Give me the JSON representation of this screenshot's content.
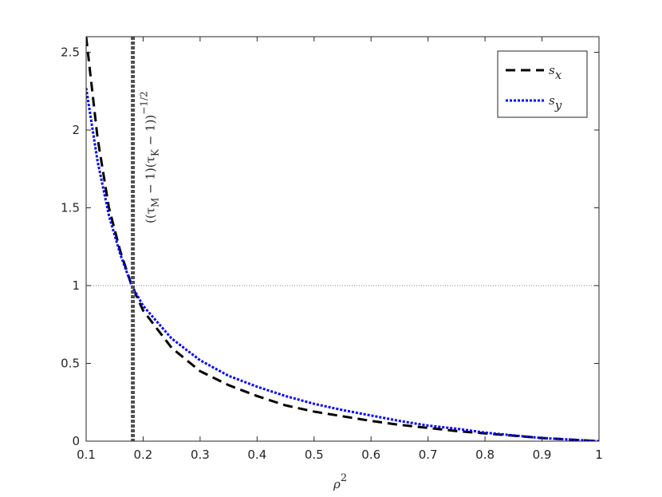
{
  "chart_data": {
    "type": "line",
    "x_label": "ρ2",
    "x": [
      0.1,
      0.12,
      0.14,
      0.16,
      0.18,
      0.2,
      0.25,
      0.3,
      0.35,
      0.4,
      0.45,
      0.5,
      0.55,
      0.6,
      0.65,
      0.7,
      0.75,
      0.8,
      0.85,
      0.9,
      0.95,
      1
    ],
    "series": [
      {
        "name": "sx",
        "color": "#000000",
        "dash": "dashed",
        "values": [
          2.6,
          1.95,
          1.5,
          1.22,
          1.0,
          0.84,
          0.6,
          0.45,
          0.36,
          0.29,
          0.23,
          0.19,
          0.16,
          0.13,
          0.105,
          0.085,
          0.065,
          0.05,
          0.035,
          0.02,
          0.01,
          0
        ]
      },
      {
        "name": "sy",
        "color": "#0000ff",
        "dash": "dotted",
        "values": [
          2.27,
          1.8,
          1.45,
          1.2,
          1.0,
          0.87,
          0.66,
          0.52,
          0.42,
          0.35,
          0.29,
          0.24,
          0.2,
          0.165,
          0.13,
          0.1,
          0.08,
          0.055,
          0.037,
          0.02,
          0.01,
          0
        ]
      }
    ],
    "xlim": [
      0.1,
      1
    ],
    "xticks": [
      0.1,
      0.2,
      0.3,
      0.4,
      0.5,
      0.6,
      0.7,
      0.8,
      0.9,
      1
    ],
    "ylim": [
      0,
      2.6
    ],
    "yticks": [
      0,
      0.5,
      1,
      1.5,
      2,
      2.5
    ],
    "vline": {
      "x": 0.182,
      "color": "#505050",
      "label": "((τM − 1)(τK − 1))−1/2"
    },
    "hline": {
      "y": 1,
      "color": "#808080"
    },
    "legend": "upper right"
  }
}
